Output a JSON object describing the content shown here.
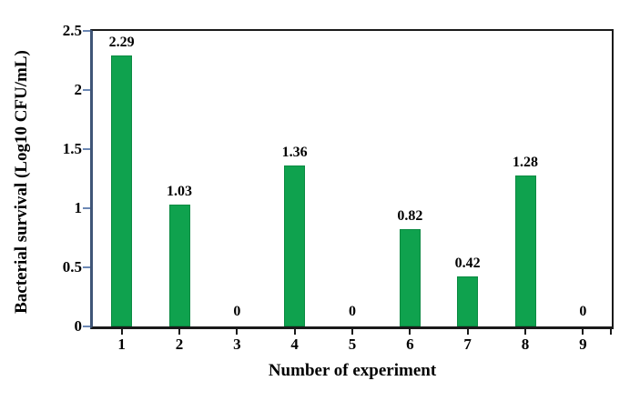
{
  "chart_data": {
    "type": "bar",
    "title": "",
    "categories": [
      "1",
      "2",
      "3",
      "4",
      "5",
      "6",
      "7",
      "8",
      "9"
    ],
    "values": [
      2.29,
      1.03,
      0,
      1.36,
      0,
      0.82,
      0.42,
      1.28,
      0
    ],
    "bar_labels": [
      "2.29",
      "1.03",
      "0",
      "1.36",
      "0",
      "0.82",
      "0.42",
      "1.28",
      "0"
    ],
    "xlabel": "Number of experiment",
    "ylabel": "Bacterial survival (Log10 CFU/mL)",
    "ylim": [
      0,
      2.5
    ],
    "ytick_values": [
      0,
      0.5,
      1,
      1.5,
      2,
      2.5
    ],
    "ytick_labels": [
      "0",
      "0.5",
      "1",
      "1.5",
      "2",
      "2.5"
    ],
    "grid": false,
    "legend": "none",
    "colors": {
      "bar_fill": "#0fa24e",
      "bar_edge": "#0b8a42",
      "y_axis": "#3f5577",
      "y_tick": "#6c88b4",
      "frame": "#1a1a1a",
      "text": "#000000"
    }
  }
}
